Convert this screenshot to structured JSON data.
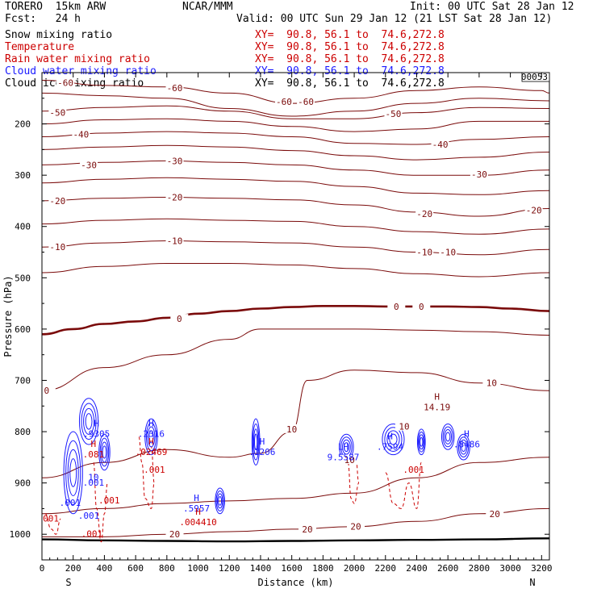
{
  "header": {
    "model_line": "TORERO  15km ARW",
    "org": "NCAR/MMM",
    "init": "Init: 00 UTC Sat 28 Jan 12",
    "fcst": "Fcst:   24 h",
    "valid": "Valid: 00 UTC Sun 29 Jan 12 (21 LST Sat 28 Jan 12)",
    "fields": [
      {
        "name": "Snow mixing ratio",
        "color": "#000000",
        "xy": "XY=  90.8, 56.1 to  74.6,272.8",
        "xy_color": "#cc0000"
      },
      {
        "name": "Temperature",
        "color": "#cc0000",
        "xy": "XY=  90.8, 56.1 to  74.6,272.8",
        "xy_color": "#cc0000"
      },
      {
        "name": "Rain water mixing ratio",
        "color": "#cc0000",
        "xy": "XY=  90.8, 56.1 to  74.6,272.8",
        "xy_color": "#cc0000"
      },
      {
        "name": "Cloud water mixing ratio",
        "color": "#1a1aff",
        "xy": "XY=  90.8, 56.1 to  74.6,272.8",
        "xy_color": "#1a1aff"
      },
      {
        "name": "Cloud ice mixing ratio",
        "color": "#000000",
        "xy": "XY=  90.8, 56.1 to  74.6,272.8",
        "xy_color": "#000000"
      }
    ],
    "frame_id": "00053"
  },
  "chart_data": {
    "type": "line",
    "title": "",
    "xlabel": "Distance (km)",
    "ylabel": "Pressure (hPa)",
    "xlim": [
      0,
      3250
    ],
    "ylim": [
      1050,
      100
    ],
    "x_ticks": [
      0,
      200,
      400,
      600,
      800,
      1000,
      1200,
      1400,
      1600,
      1800,
      2000,
      2200,
      2400,
      2600,
      2800,
      3000,
      3200
    ],
    "y_ticks": [
      200,
      300,
      400,
      500,
      600,
      700,
      800,
      900,
      1000
    ],
    "endpoint_labels": {
      "left": "S",
      "right": "N"
    },
    "temperature_contours": [
      {
        "level": -60,
        "x": [
          0,
          400,
          800,
          1200,
          1600,
          2000,
          2400,
          2800,
          3200,
          3250
        ],
        "p": [
          115,
          125,
          128,
          140,
          160,
          150,
          135,
          128,
          135,
          140
        ]
      },
      {
        "level": -55,
        "x": [
          0,
          400,
          800,
          1200,
          1600,
          2000,
          2400,
          2800,
          3250
        ],
        "p": [
          140,
          145,
          150,
          170,
          185,
          175,
          160,
          150,
          155
        ]
      },
      {
        "level": -50,
        "x": [
          0,
          400,
          800,
          1200,
          1600,
          2000,
          2400,
          2800,
          3250
        ],
        "p": [
          175,
          168,
          165,
          175,
          190,
          190,
          178,
          168,
          170
        ]
      },
      {
        "level": -45,
        "x": [
          0,
          400,
          800,
          1200,
          1600,
          2000,
          2400,
          2800,
          3250
        ],
        "p": [
          200,
          192,
          190,
          195,
          205,
          215,
          210,
          195,
          195
        ]
      },
      {
        "level": -40,
        "x": [
          0,
          400,
          800,
          1200,
          1600,
          2000,
          2400,
          2800,
          3250
        ],
        "p": [
          225,
          218,
          215,
          218,
          225,
          238,
          240,
          230,
          225
        ]
      },
      {
        "level": -35,
        "x": [
          0,
          400,
          800,
          1200,
          1600,
          2000,
          2400,
          2800,
          3250
        ],
        "p": [
          250,
          245,
          242,
          245,
          252,
          262,
          270,
          265,
          255
        ]
      },
      {
        "level": -30,
        "x": [
          0,
          400,
          800,
          1200,
          1600,
          2000,
          2400,
          2800,
          3250
        ],
        "p": [
          280,
          275,
          272,
          275,
          280,
          290,
          300,
          300,
          290
        ]
      },
      {
        "level": -25,
        "x": [
          0,
          400,
          800,
          1200,
          1600,
          2000,
          2400,
          2800,
          3250
        ],
        "p": [
          315,
          308,
          305,
          308,
          312,
          322,
          335,
          338,
          330
        ]
      },
      {
        "level": -20,
        "x": [
          0,
          400,
          800,
          1200,
          1600,
          2000,
          2400,
          2800,
          3250
        ],
        "p": [
          350,
          345,
          343,
          345,
          348,
          358,
          372,
          380,
          365
        ]
      },
      {
        "level": -15,
        "x": [
          0,
          400,
          800,
          1200,
          1600,
          2000,
          2400,
          2800,
          3250
        ],
        "p": [
          395,
          388,
          385,
          388,
          390,
          400,
          410,
          415,
          405
        ]
      },
      {
        "level": -10,
        "x": [
          0,
          400,
          800,
          1200,
          1600,
          2000,
          2400,
          2800,
          3250
        ],
        "p": [
          440,
          432,
          428,
          430,
          432,
          440,
          450,
          455,
          445
        ]
      },
      {
        "level": -5,
        "x": [
          0,
          400,
          800,
          1200,
          1600,
          2000,
          2400,
          2800,
          3250
        ],
        "p": [
          490,
          478,
          472,
          472,
          475,
          482,
          492,
          498,
          490
        ]
      },
      {
        "level": 0,
        "x": [
          0,
          200,
          400,
          600,
          800,
          1000,
          1200,
          1400,
          1600,
          1800,
          2000,
          2200,
          2400,
          2600,
          2800,
          3000,
          3250
        ],
        "p": [
          610,
          600,
          590,
          585,
          578,
          570,
          565,
          560,
          557,
          555,
          555,
          556,
          556,
          556,
          557,
          560,
          565
        ]
      },
      {
        "level": 5,
        "x": [
          0,
          400,
          800,
          1200,
          1400,
          1600,
          2000,
          2400,
          2800,
          3250
        ],
        "p": [
          720,
          675,
          650,
          620,
          600,
          600,
          600,
          602,
          605,
          612
        ]
      },
      {
        "level": 10,
        "x": [
          0,
          400,
          800,
          1200,
          1400,
          1600,
          1700,
          2000,
          2400,
          2800,
          3250
        ],
        "p": [
          890,
          860,
          835,
          850,
          842,
          800,
          700,
          680,
          685,
          705,
          720
        ]
      },
      {
        "level": 15,
        "x": [
          0,
          400,
          800,
          1200,
          1600,
          2000,
          2400,
          2800,
          3250
        ],
        "p": [
          960,
          950,
          940,
          935,
          930,
          920,
          890,
          860,
          850
        ]
      },
      {
        "level": 20,
        "x": [
          0,
          400,
          800,
          1200,
          1600,
          2000,
          2400,
          2800,
          3250
        ],
        "p": [
          1005,
          1005,
          1000,
          995,
          990,
          985,
          975,
          960,
          950
        ]
      }
    ],
    "temperature_labels": [
      {
        "text": "-60",
        "x": 150,
        "p": 120
      },
      {
        "text": "-60",
        "x": 850,
        "p": 130
      },
      {
        "text": "-60",
        "x": 1550,
        "p": 157
      },
      {
        "text": "-60",
        "x": 1690,
        "p": 157
      },
      {
        "text": "-50",
        "x": 100,
        "p": 178
      },
      {
        "text": "-50",
        "x": 2250,
        "p": 180
      },
      {
        "text": "-40",
        "x": 250,
        "p": 220
      },
      {
        "text": "-40",
        "x": 2550,
        "p": 240
      },
      {
        "text": "-30",
        "x": 300,
        "p": 280
      },
      {
        "text": "-30",
        "x": 850,
        "p": 272
      },
      {
        "text": "-30",
        "x": 2800,
        "p": 298
      },
      {
        "text": "-20",
        "x": 100,
        "p": 350
      },
      {
        "text": "-20",
        "x": 850,
        "p": 343
      },
      {
        "text": "-20",
        "x": 2450,
        "p": 375
      },
      {
        "text": "-20",
        "x": 3150,
        "p": 368
      },
      {
        "text": "-10",
        "x": 100,
        "p": 440
      },
      {
        "text": "-10",
        "x": 850,
        "p": 428
      },
      {
        "text": "-10",
        "x": 2450,
        "p": 450
      },
      {
        "text": "-10",
        "x": 2600,
        "p": 450
      },
      {
        "text": "0",
        "x": 880,
        "p": 580
      },
      {
        "text": "0",
        "x": 2270,
        "p": 556
      },
      {
        "text": "0",
        "x": 2430,
        "p": 556
      },
      {
        "text": "0",
        "x": 30,
        "p": 720
      },
      {
        "text": "10",
        "x": 1600,
        "p": 795
      },
      {
        "text": "10",
        "x": 2320,
        "p": 790
      },
      {
        "text": "10",
        "x": 2880,
        "p": 705
      },
      {
        "text": "10",
        "x": 1970,
        "p": 855
      },
      {
        "text": "20",
        "x": 850,
        "p": 1000
      },
      {
        "text": "20",
        "x": 1700,
        "p": 990
      },
      {
        "text": "20",
        "x": 2010,
        "p": 985
      },
      {
        "text": "20",
        "x": 2900,
        "p": 960
      }
    ],
    "surface_pressure": {
      "x": [
        0,
        400,
        800,
        1200,
        1600,
        2000,
        2400,
        2800,
        3250
      ],
      "p": [
        1010,
        1012,
        1013,
        1014,
        1013,
        1012,
        1011,
        1010,
        1008
      ]
    },
    "max_labels": [
      {
        "text": "H",
        "value": "14.19",
        "x": 2530,
        "p": 738,
        "color": "#7a0a0a"
      },
      {
        "text": "H",
        "value": ".2316",
        "x": 700,
        "p": 790,
        "color": "#1a1aff"
      },
      {
        "text": "H",
        "value": ".02469",
        "x": 700,
        "p": 825,
        "color": "#cc0000"
      },
      {
        "text": "H",
        "value": ".9305",
        "x": 350,
        "p": 790,
        "color": "#1a1aff"
      },
      {
        "text": "H",
        "value": ".081",
        "x": 330,
        "p": 830,
        "color": "#cc0000"
      },
      {
        "text": "H",
        "value": ".1206",
        "x": 1410,
        "p": 825,
        "color": "#1a1aff"
      },
      {
        "text": "LH",
        "value": "9.5587",
        "x": 1930,
        "p": 835,
        "color": "#1a1aff"
      },
      {
        "text": "H",
        "value": ".7594",
        "x": 2230,
        "p": 815,
        "color": "#1a1aff"
      },
      {
        "text": "H",
        "value": ".8486",
        "x": 2720,
        "p": 810,
        "color": "#1a1aff"
      },
      {
        "text": "H",
        "value": ".5957",
        "x": 990,
        "p": 935,
        "color": "#1a1aff"
      },
      {
        "text": "H",
        "value": ".004410",
        "x": 1000,
        "p": 962,
        "color": "#cc0000"
      }
    ],
    "rain_labels": [
      {
        "text": ".001",
        "x": 430,
        "p": 940
      },
      {
        "text": ".001",
        "x": 720,
        "p": 880
      },
      {
        "text": ".001",
        "x": 2380,
        "p": 880
      },
      {
        "text": ".001",
        "x": 320,
        "p": 1005
      },
      {
        "text": ".001",
        "x": 40,
        "p": 975
      }
    ],
    "cloud_labels": [
      {
        "text": ".001",
        "x": 300,
        "p": 970
      },
      {
        "text": ".001",
        "x": 180,
        "p": 945
      },
      {
        "text": ".001",
        "x": 330,
        "p": 905
      },
      {
        "text": "10",
        "x": 330,
        "p": 895
      }
    ],
    "cloud_water_blobs": [
      {
        "cx": 300,
        "cp": 780,
        "rx": 60,
        "rp": 45
      },
      {
        "cx": 200,
        "cp": 880,
        "rx": 60,
        "rp": 80
      },
      {
        "cx": 400,
        "cp": 840,
        "rx": 35,
        "rp": 35
      },
      {
        "cx": 700,
        "cp": 810,
        "rx": 40,
        "rp": 35
      },
      {
        "cx": 1140,
        "cp": 935,
        "rx": 30,
        "rp": 25
      },
      {
        "cx": 1370,
        "cp": 820,
        "rx": 25,
        "rp": 45
      },
      {
        "cx": 1950,
        "cp": 830,
        "rx": 45,
        "rp": 25
      },
      {
        "cx": 2250,
        "cp": 815,
        "rx": 70,
        "rp": 30
      },
      {
        "cx": 2430,
        "cp": 820,
        "rx": 25,
        "rp": 25
      },
      {
        "cx": 2600,
        "cp": 810,
        "rx": 40,
        "rp": 25
      },
      {
        "cx": 2700,
        "cp": 830,
        "rx": 40,
        "rp": 25
      }
    ],
    "rain_dashes": [
      {
        "x": [
          620,
          640,
          660,
          700,
          720,
          700
        ],
        "p": [
          810,
          860,
          930,
          950,
          900,
          830
        ]
      },
      {
        "x": [
          1960,
          1980,
          2000,
          2030,
          2010
        ],
        "p": [
          860,
          930,
          940,
          900,
          850
        ]
      },
      {
        "x": [
          2200,
          2250,
          2300,
          2350,
          2400,
          2430
        ],
        "p": [
          880,
          940,
          950,
          900,
          950,
          860
        ]
      },
      {
        "x": [
          330,
          350,
          380,
          400,
          420
        ],
        "p": [
          860,
          950,
          1015,
          960,
          900
        ]
      },
      {
        "x": [
          20,
          60,
          90,
          120
        ],
        "p": [
          960,
          990,
          1000,
          970
        ]
      }
    ]
  }
}
